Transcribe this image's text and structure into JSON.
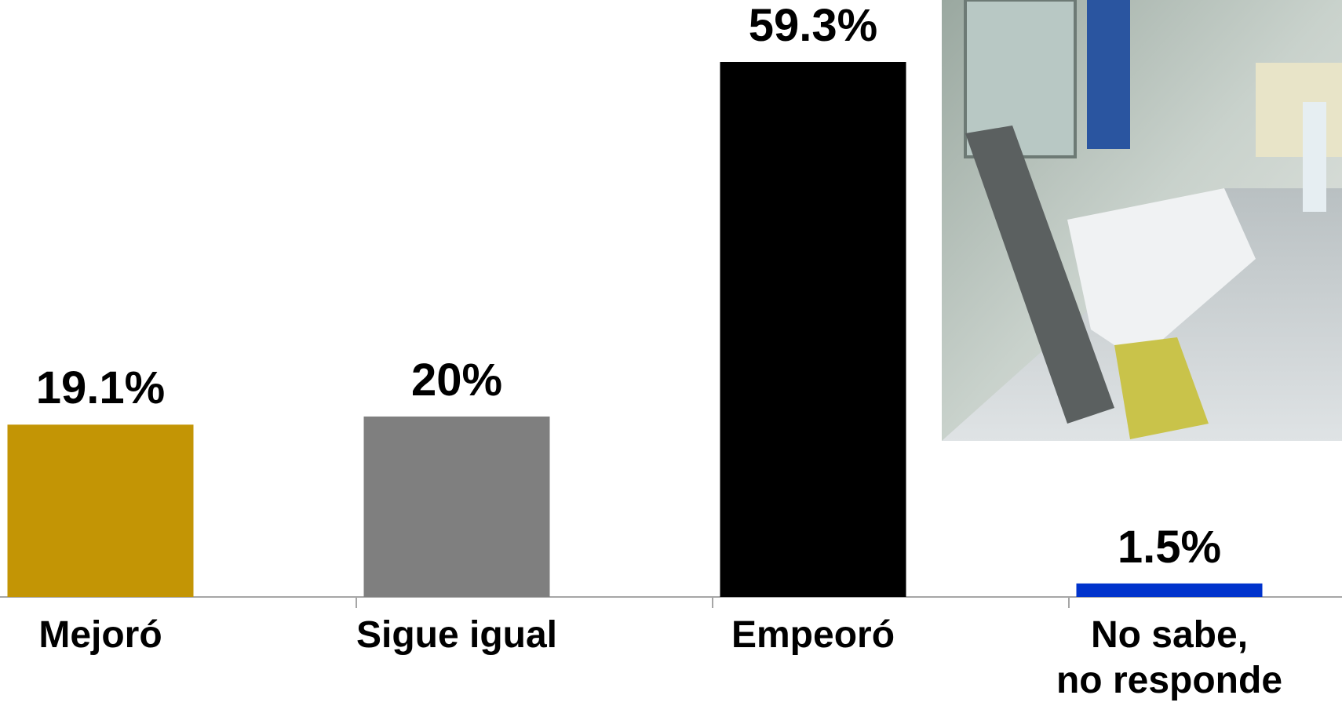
{
  "chart_data": {
    "type": "bar",
    "categories": [
      "Mejoró",
      "Sigue igual",
      "Empeoró",
      "No sabe,\nno responde"
    ],
    "values": [
      19.1,
      20,
      59.3,
      1.5
    ],
    "value_labels": [
      "19.1%",
      "20%",
      "59.3%",
      "1.5%"
    ],
    "colors": [
      "#c39505",
      "#7f7f7f",
      "#000000",
      "#0033cc"
    ]
  }
}
